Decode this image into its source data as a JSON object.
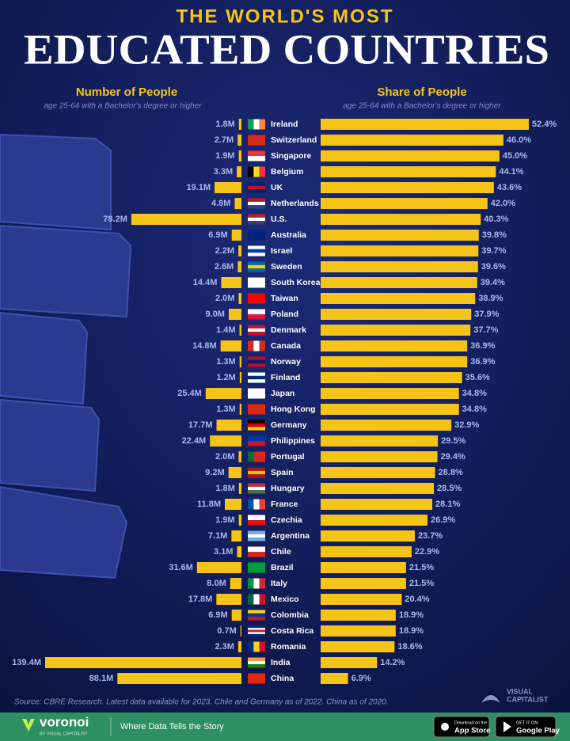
{
  "chart_data": {
    "type": "bar",
    "supertitle": "THE WORLD'S MOST",
    "title": "EDUCATED COUNTRIES",
    "categories": [
      "Ireland",
      "Switzerland",
      "Singapore",
      "Belgium",
      "UK",
      "Netherlands",
      "U.S.",
      "Australia",
      "Israel",
      "Sweden",
      "South Korea",
      "Taiwan",
      "Poland",
      "Denmark",
      "Canada",
      "Norway",
      "Finland",
      "Japan",
      "Hong Kong",
      "Germany",
      "Philippines",
      "Portugal",
      "Spain",
      "Hungary",
      "France",
      "Czechia",
      "Argentina",
      "Chile",
      "Brazil",
      "Italy",
      "Mexico",
      "Colombia",
      "Costa Rica",
      "Romania",
      "India",
      "China"
    ],
    "series": [
      {
        "name": "Number of People",
        "subtitle": "age 25-64 with a Bachelor's degree or higher",
        "color": "#f6c417",
        "values": [
          1.8,
          2.7,
          1.9,
          3.3,
          19.1,
          4.8,
          78.2,
          6.9,
          2.2,
          2.6,
          14.4,
          2.0,
          9.0,
          1.4,
          14.8,
          1.3,
          1.2,
          25.4,
          1.3,
          17.7,
          22.4,
          2.0,
          9.2,
          1.8,
          11.8,
          1.9,
          7.1,
          3.1,
          31.6,
          8.0,
          17.8,
          6.9,
          0.7,
          2.3,
          139.4,
          88.1
        ],
        "value_labels": [
          "1.8M",
          "2.7M",
          "1.9M",
          "3.3M",
          "19.1M",
          "4.8M",
          "78.2M",
          "6.9M",
          "2.2M",
          "2.6M",
          "14.4M",
          "2.0M",
          "9.0M",
          "1.4M",
          "14.8M",
          "1.3M",
          "1.2M",
          "25.4M",
          "1.3M",
          "17.7M",
          "22.4M",
          "2.0M",
          "9.2M",
          "1.8M",
          "11.8M",
          "1.9M",
          "7.1M",
          "3.1M",
          "31.6M",
          "8.0M",
          "17.8M",
          "6.9M",
          "0.7M",
          "2.3M",
          "139.4M",
          "88.1M"
        ]
      },
      {
        "name": "Share of People",
        "subtitle": "age 25-64 with a Bachelor's degree or higher",
        "color": "#f6c417",
        "values": [
          52.4,
          46.0,
          45.0,
          44.1,
          43.6,
          42.0,
          40.3,
          39.8,
          39.7,
          39.6,
          39.4,
          38.9,
          37.9,
          37.7,
          36.9,
          36.9,
          35.6,
          34.8,
          34.8,
          32.9,
          29.5,
          29.4,
          28.8,
          28.5,
          28.1,
          26.9,
          23.7,
          22.9,
          21.5,
          21.5,
          20.4,
          18.9,
          18.9,
          18.6,
          14.2,
          6.9
        ],
        "value_labels": [
          "52.4%",
          "46.0%",
          "45.0%",
          "44.1%",
          "43.6%",
          "42.0%",
          "40.3%",
          "39.8%",
          "39.7%",
          "39.6%",
          "39.4%",
          "38.9%",
          "37.9%",
          "37.7%",
          "36.9%",
          "36.9%",
          "35.6%",
          "34.8%",
          "34.8%",
          "32.9%",
          "29.5%",
          "29.4%",
          "28.8%",
          "28.5%",
          "28.1%",
          "26.9%",
          "23.7%",
          "22.9%",
          "21.5%",
          "21.5%",
          "20.4%",
          "18.9%",
          "18.9%",
          "18.6%",
          "14.2%",
          "6.9%"
        ]
      }
    ],
    "source": "Source: CBRE Research. Latest data available for 2023. Chile and Germany as of 2022. China as of 2020."
  },
  "footer": {
    "brand": "voronoi",
    "brand_sub": "BY VISUAL CAPITALIST",
    "tagline": "Where Data Tells the Story",
    "publisher": [
      "VISUAL",
      "CAPITALIST"
    ],
    "app_store": [
      "Download on the",
      "App Store"
    ],
    "google_play": [
      "GET IT ON",
      "Google Play"
    ]
  }
}
